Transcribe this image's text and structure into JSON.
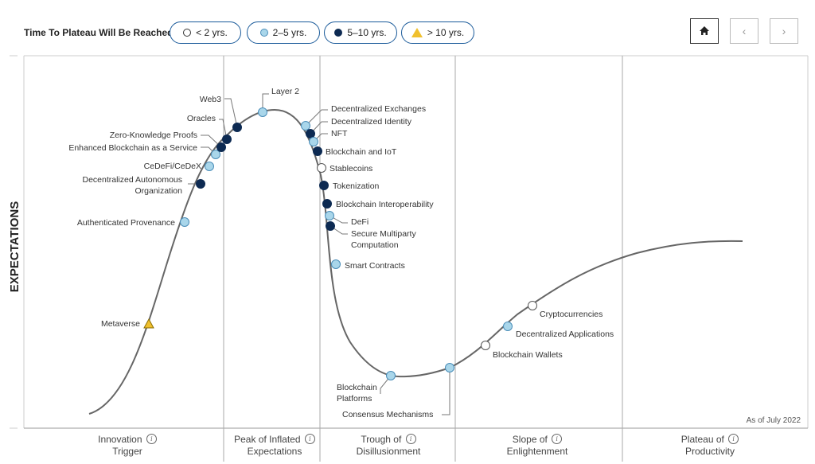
{
  "legend": {
    "title": "Time To Plateau Will Be Reached:",
    "items": [
      {
        "label": "< 2 yrs.",
        "marker": "white"
      },
      {
        "label": "2–5 yrs.",
        "marker": "light"
      },
      {
        "label": "5–10 yrs.",
        "marker": "dark"
      },
      {
        "label": "> 10 yrs.",
        "marker": "triangle"
      }
    ]
  },
  "nav": {
    "home_icon": "home-icon",
    "prev_icon": "chevron-left-icon",
    "next_icon": "chevron-right-icon",
    "prev_glyph": "‹",
    "next_glyph": "›"
  },
  "colors": {
    "white": "#ffffff",
    "light": "#a9d6ea",
    "dark": "#0d2a52",
    "triangle": "#f0c02e",
    "curve": "#666666",
    "accent": "#1a5a9a"
  },
  "chart_data": {
    "type": "hype-cycle",
    "ylabel": "EXPECTATIONS",
    "note": "As of July 2022",
    "phases": [
      {
        "line1": "Innovation",
        "line2": "Trigger"
      },
      {
        "line1": "Peak of Inflated",
        "line2": "Expectations"
      },
      {
        "line1": "Trough of",
        "line2": "Disillusionment"
      },
      {
        "line1": "Slope of",
        "line2": "Enlightenment"
      },
      {
        "line1": "Plateau of",
        "line2": "Productivity"
      }
    ],
    "technologies": [
      {
        "name": "Metaverse",
        "phase": "Innovation Trigger",
        "plateau": "> 10 yrs."
      },
      {
        "name": "Authenticated Provenance",
        "phase": "Innovation Trigger",
        "plateau": "2–5 yrs."
      },
      {
        "name": "Decentralized Autonomous Organization",
        "phase": "Innovation Trigger",
        "plateau": "5–10 yrs."
      },
      {
        "name": "CeDeFi/CeDeX",
        "phase": "Innovation Trigger",
        "plateau": "2–5 yrs."
      },
      {
        "name": "Enhanced Blockchain as a Service",
        "phase": "Innovation Trigger",
        "plateau": "2–5 yrs."
      },
      {
        "name": "Zero-Knowledge Proofs",
        "phase": "Innovation Trigger",
        "plateau": "5–10 yrs."
      },
      {
        "name": "Oracles",
        "phase": "Innovation Trigger",
        "plateau": "5–10 yrs."
      },
      {
        "name": "Web3",
        "phase": "Peak of Inflated Expectations",
        "plateau": "5–10 yrs."
      },
      {
        "name": "Layer 2",
        "phase": "Peak of Inflated Expectations",
        "plateau": "2–5 yrs."
      },
      {
        "name": "Decentralized Exchanges",
        "phase": "Peak of Inflated Expectations",
        "plateau": "2–5 yrs."
      },
      {
        "name": "Decentralized Identity",
        "phase": "Peak of Inflated Expectations",
        "plateau": "5–10 yrs."
      },
      {
        "name": "NFT",
        "phase": "Peak of Inflated Expectations",
        "plateau": "2–5 yrs."
      },
      {
        "name": "Blockchain and IoT",
        "phase": "Trough of Disillusionment",
        "plateau": "5–10 yrs."
      },
      {
        "name": "Stablecoins",
        "phase": "Trough of Disillusionment",
        "plateau": "< 2 yrs."
      },
      {
        "name": "Tokenization",
        "phase": "Trough of Disillusionment",
        "plateau": "5–10 yrs."
      },
      {
        "name": "Blockchain Interoperability",
        "phase": "Trough of Disillusionment",
        "plateau": "5–10 yrs."
      },
      {
        "name": "DeFi",
        "phase": "Trough of Disillusionment",
        "plateau": "2–5 yrs."
      },
      {
        "name": "Secure Multiparty Computation",
        "phase": "Trough of Disillusionment",
        "plateau": "5–10 yrs."
      },
      {
        "name": "Smart Contracts",
        "phase": "Trough of Disillusionment",
        "plateau": "2–5 yrs."
      },
      {
        "name": "Blockchain Platforms",
        "phase": "Trough of Disillusionment",
        "plateau": "2–5 yrs."
      },
      {
        "name": "Consensus Mechanisms",
        "phase": "Slope of Enlightenment",
        "plateau": "2–5 yrs."
      },
      {
        "name": "Blockchain Wallets",
        "phase": "Slope of Enlightenment",
        "plateau": "< 2 yrs."
      },
      {
        "name": "Decentralized Applications",
        "phase": "Slope of Enlightenment",
        "plateau": "2–5 yrs."
      },
      {
        "name": "Cryptocurrencies",
        "phase": "Slope of Enlightenment",
        "plateau": "< 2 yrs."
      }
    ]
  }
}
